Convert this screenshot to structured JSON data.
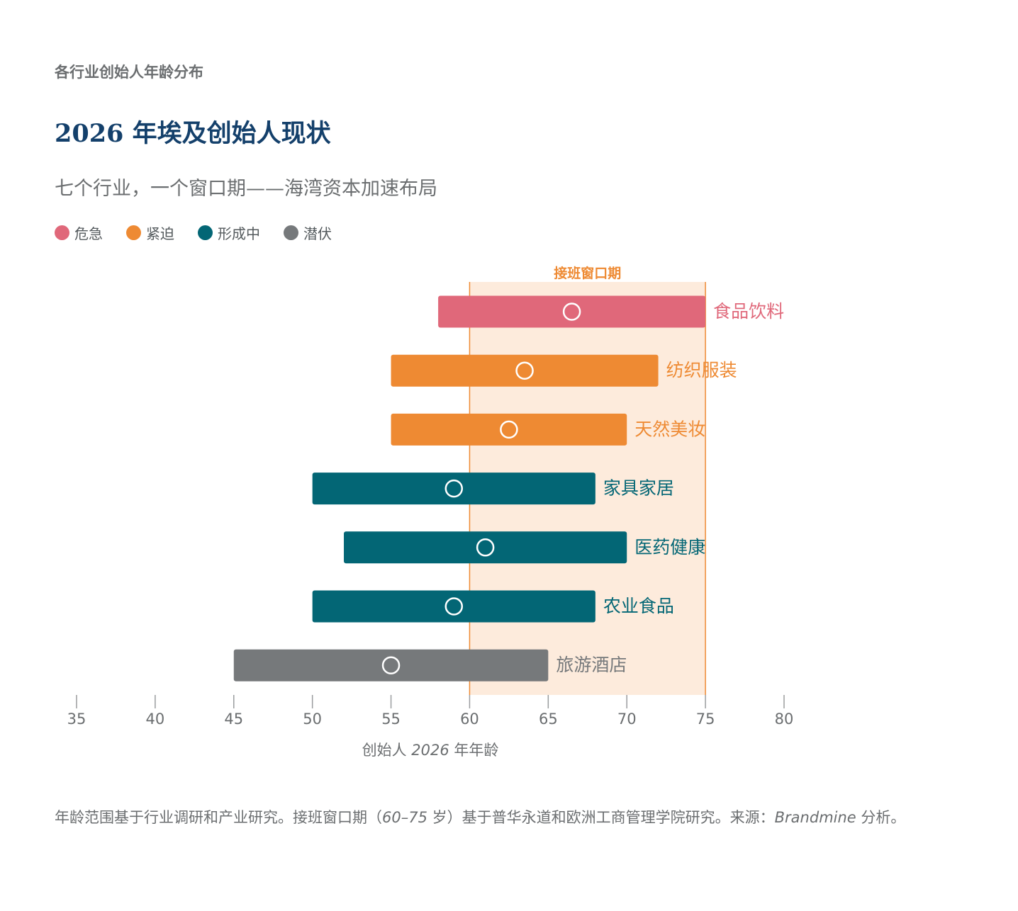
{
  "kicker": "各行业创始人年龄分布",
  "title": "2026 年埃及创始人现状",
  "subtitle": "七个行业，一个窗口期——海湾资本加速布局",
  "legend": [
    {
      "label": "危急",
      "color": "#e0687a"
    },
    {
      "label": "紧迫",
      "color": "#ee8a33"
    },
    {
      "label": "形成中",
      "color": "#036675"
    },
    {
      "label": "潜伏",
      "color": "#76797b"
    }
  ],
  "chart_data": {
    "type": "range-bar",
    "xlabel_prefix": "创始人 ",
    "xlabel_year": "2026",
    "xlabel_suffix": " 年年龄",
    "xlim": [
      35,
      80
    ],
    "xticks": [
      35,
      40,
      45,
      50,
      55,
      60,
      65,
      70,
      75,
      80
    ],
    "window": {
      "label": "接班窗口期",
      "start": 60,
      "end": 75
    },
    "series": [
      {
        "category": "食品饮料",
        "min": 58,
        "max": 75,
        "median": 66.5,
        "status": "危急",
        "color": "#e0687a"
      },
      {
        "category": "纺织服装",
        "min": 55,
        "max": 72,
        "median": 63.5,
        "status": "紧迫",
        "color": "#ee8a33"
      },
      {
        "category": "天然美妆",
        "min": 55,
        "max": 70,
        "median": 62.5,
        "status": "紧迫",
        "color": "#ee8a33"
      },
      {
        "category": "家具家居",
        "min": 50,
        "max": 68,
        "median": 59,
        "status": "形成中",
        "color": "#036675"
      },
      {
        "category": "医药健康",
        "min": 52,
        "max": 70,
        "median": 61,
        "status": "形成中",
        "color": "#036675"
      },
      {
        "category": "农业食品",
        "min": 50,
        "max": 68,
        "median": 59,
        "status": "形成中",
        "color": "#036675"
      },
      {
        "category": "旅游酒店",
        "min": 45,
        "max": 65,
        "median": 55,
        "status": "潜伏",
        "color": "#76797b"
      }
    ]
  },
  "footnote": {
    "part1": "年龄范围基于行业调研和产业研究。接班窗口期（",
    "range": "60–75",
    "part2": " 岁）基于普华永道和欧洲工商管理学院研究。来源：",
    "source": "Brandmine",
    "part3": " 分析。"
  }
}
